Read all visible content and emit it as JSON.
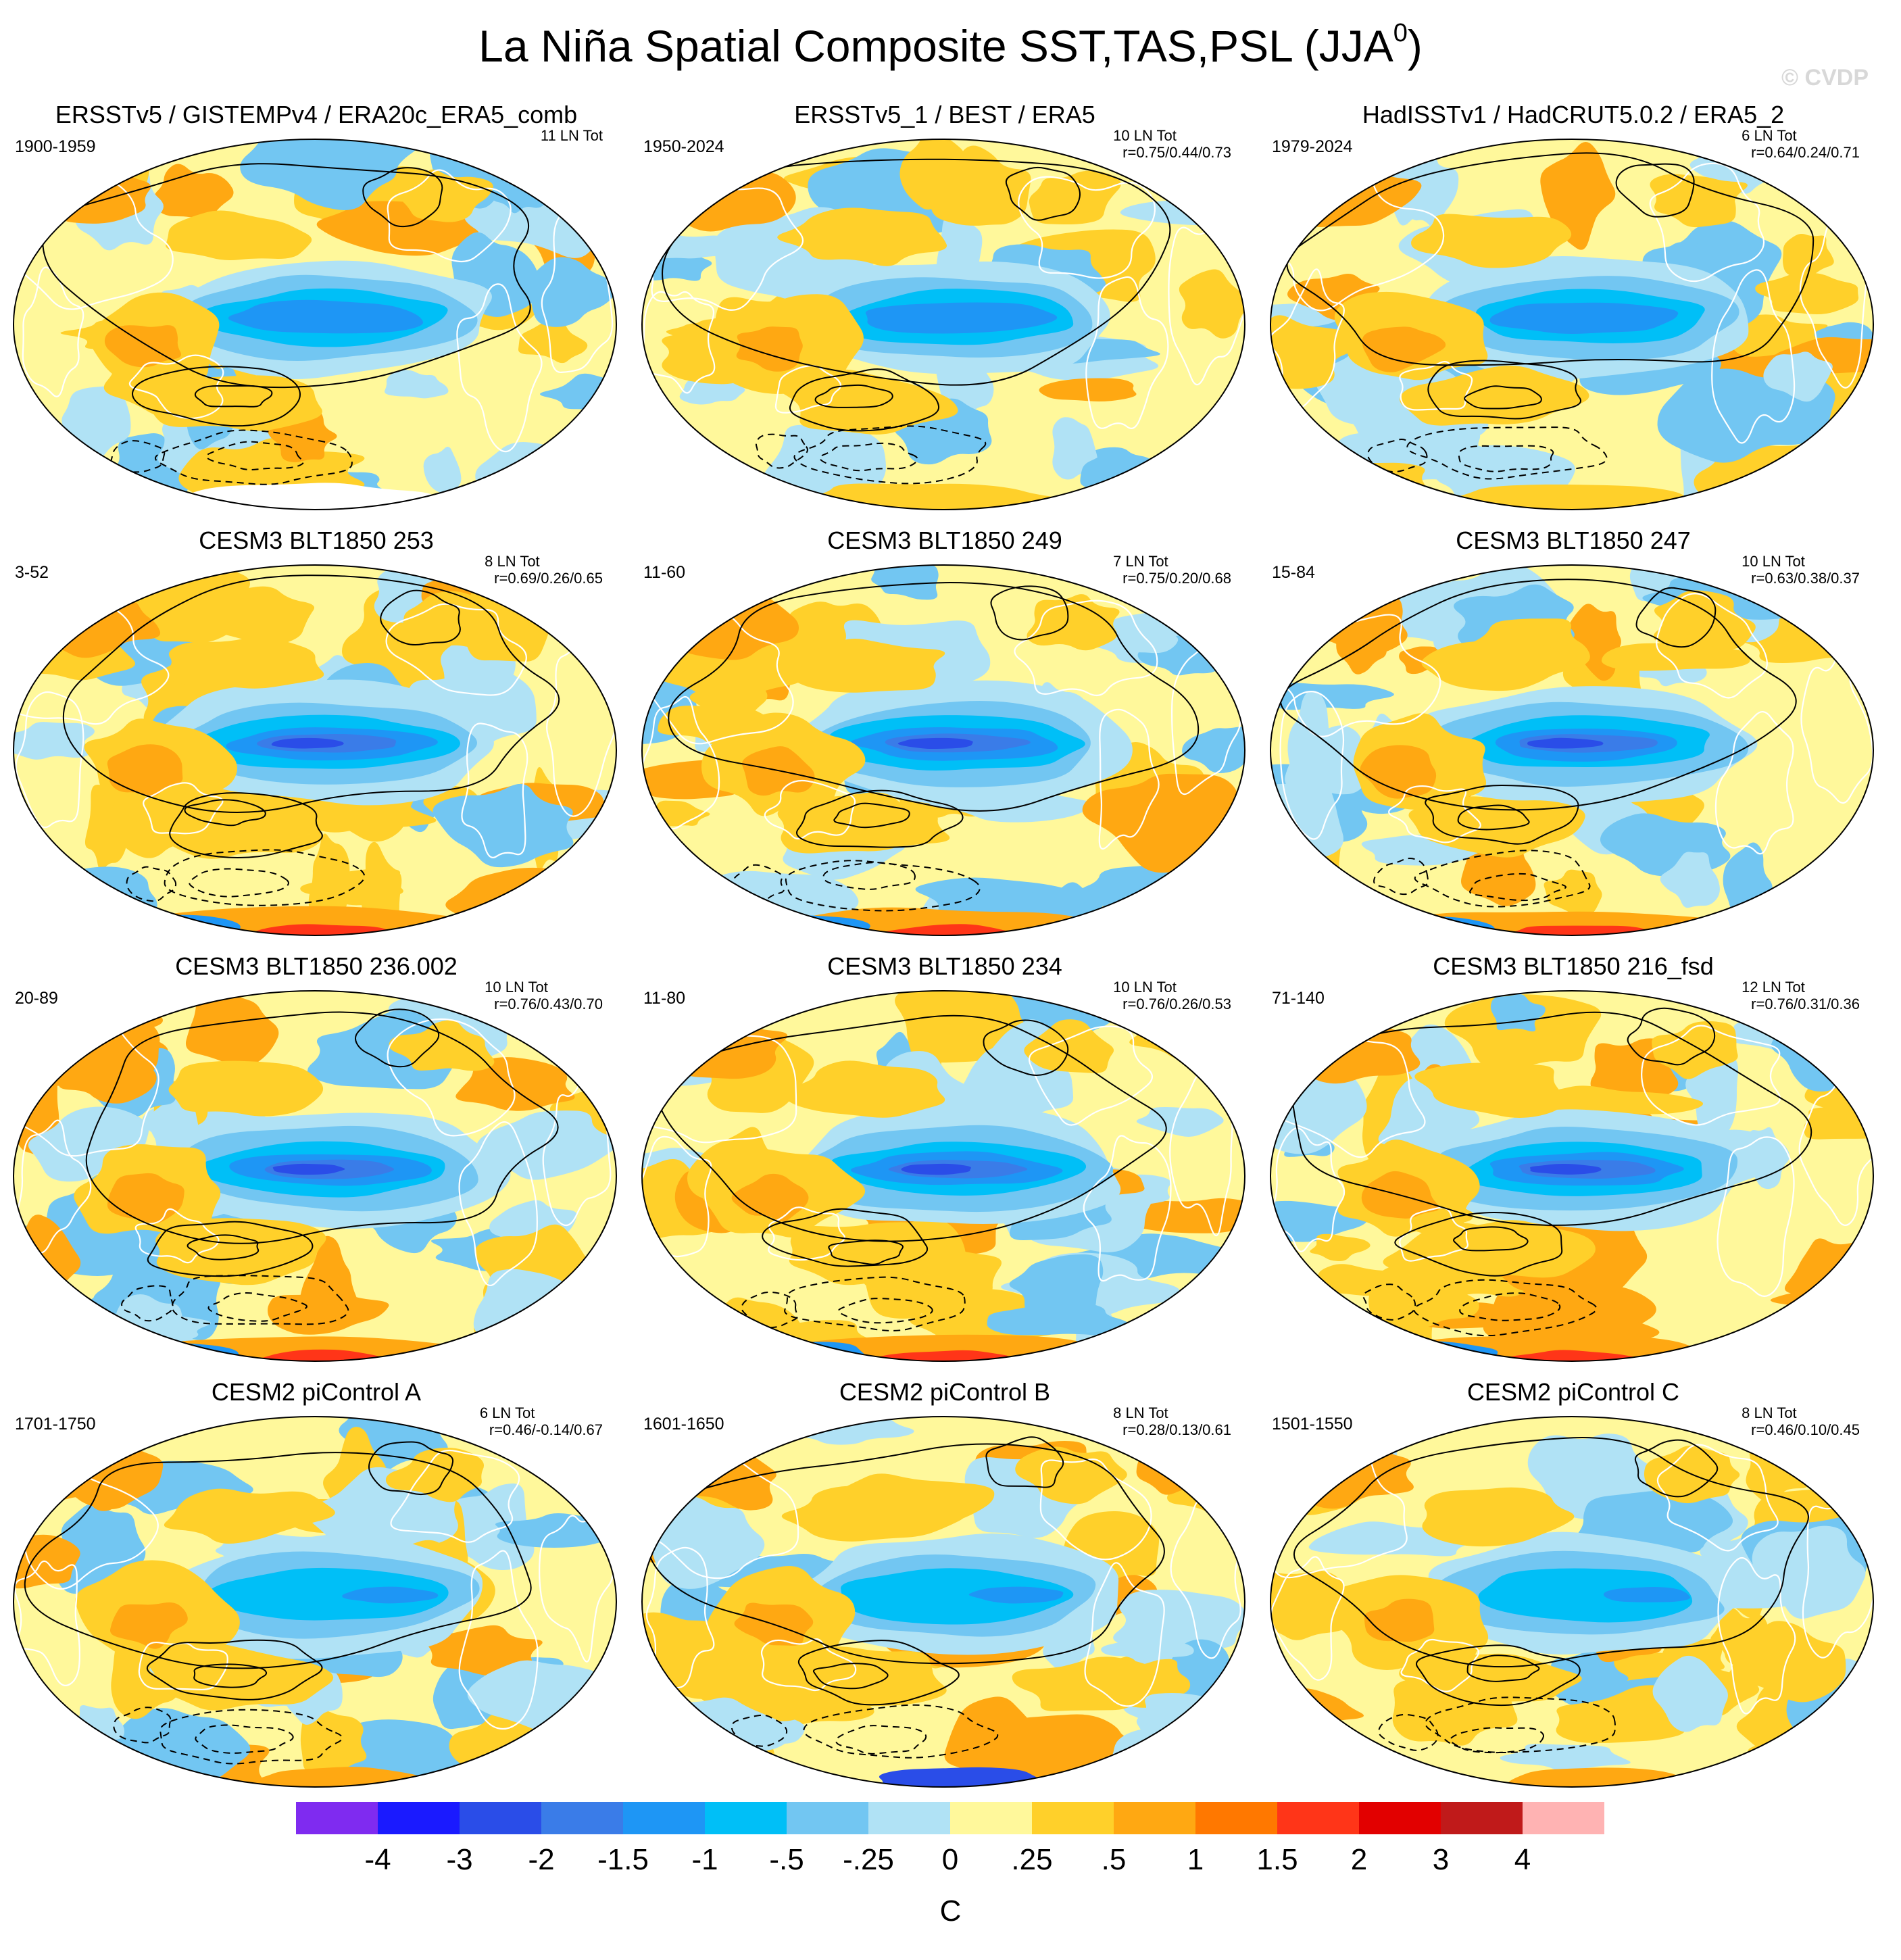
{
  "figure": {
    "title_main": "La Niña Spatial Composite SST,TAS,PSL (JJA",
    "title_superscript": "0",
    "title_close": ")",
    "credit": "© CVDP"
  },
  "colors": {
    "ocean_base": "#fff89b",
    "land_outline": "#ffffff",
    "contour": "#000000"
  },
  "chart_data": {
    "type": "heatmap",
    "title": "La Niña Spatial Composite SST,TAS,PSL (JJA0)",
    "units": "C",
    "projection": "Robinson (Pacific-centered global maps)",
    "colorbar": {
      "levels": [
        "-4",
        "-3",
        "-2",
        "-1.5",
        "-1",
        "-.5",
        "-.25",
        "0",
        ".25",
        ".5",
        "1",
        "1.5",
        "2",
        "3",
        "4"
      ],
      "colors": [
        "#7f2bf0",
        "#1a1aff",
        "#2a4de8",
        "#3a7ce8",
        "#1e96f5",
        "#00bff7",
        "#72c6f2",
        "#b0e2f5",
        "#fff89b",
        "#ffd02a",
        "#ffa812",
        "#ff7800",
        "#ff3518",
        "#e20000",
        "#c01a1a",
        "#ffb3b3"
      ],
      "label": "C"
    },
    "panels": [
      {
        "title": "ERSSTv5 / GISTEMPv4 / ERA20c_ERA5_comb",
        "years": "1900-1959",
        "stats_line1": "11 LN Tot",
        "stats_line2": "",
        "style": "obs",
        "seed": 3
      },
      {
        "title": "ERSSTv5_1 / BEST / ERA5",
        "years": "1950-2024",
        "stats_line1": "10 LN Tot",
        "stats_line2": "r=0.75/0.44/0.73",
        "style": "obs",
        "seed": 7
      },
      {
        "title": "HadISSTv1 / HadCRUT5.0.2 / ERA5_2",
        "years": "1979-2024",
        "stats_line1": "6 LN Tot",
        "stats_line2": "r=0.64/0.24/0.71",
        "style": "obs",
        "seed": 11
      },
      {
        "title": "CESM3 BLT1850 253",
        "years": "3-52",
        "stats_line1": "8 LN Tot",
        "stats_line2": "r=0.69/0.26/0.65",
        "style": "model",
        "seed": 13
      },
      {
        "title": "CESM3 BLT1850 249",
        "years": "11-60",
        "stats_line1": "7 LN Tot",
        "stats_line2": "r=0.75/0.20/0.68",
        "style": "model",
        "seed": 17
      },
      {
        "title": "CESM3 BLT1850 247",
        "years": "15-84",
        "stats_line1": "10 LN Tot",
        "stats_line2": "r=0.63/0.38/0.37",
        "style": "model",
        "seed": 19
      },
      {
        "title": "CESM3 BLT1850 236.002",
        "years": "20-89",
        "stats_line1": "10 LN Tot",
        "stats_line2": "r=0.76/0.43/0.70",
        "style": "model",
        "seed": 23
      },
      {
        "title": "CESM3 BLT1850 234",
        "years": "11-80",
        "stats_line1": "10 LN Tot",
        "stats_line2": "r=0.76/0.26/0.53",
        "style": "model",
        "seed": 29
      },
      {
        "title": "CESM3 BLT1850 216_fsd",
        "years": "71-140",
        "stats_line1": "12 LN Tot",
        "stats_line2": "r=0.76/0.31/0.36",
        "style": "model",
        "seed": 31
      },
      {
        "title": "CESM2 piControl A",
        "years": "1701-1750",
        "stats_line1": "6 LN Tot",
        "stats_line2": "r=0.46/-0.14/0.67",
        "style": "weak",
        "seed": 37
      },
      {
        "title": "CESM2 piControl B",
        "years": "1601-1650",
        "stats_line1": "8 LN Tot",
        "stats_line2": "r=0.28/0.13/0.61",
        "style": "weak",
        "seed": 41
      },
      {
        "title": "CESM2 piControl C",
        "years": "1501-1550",
        "stats_line1": "8 LN Tot",
        "stats_line2": "r=0.46/0.10/0.45",
        "style": "weak",
        "seed": 43
      }
    ]
  }
}
